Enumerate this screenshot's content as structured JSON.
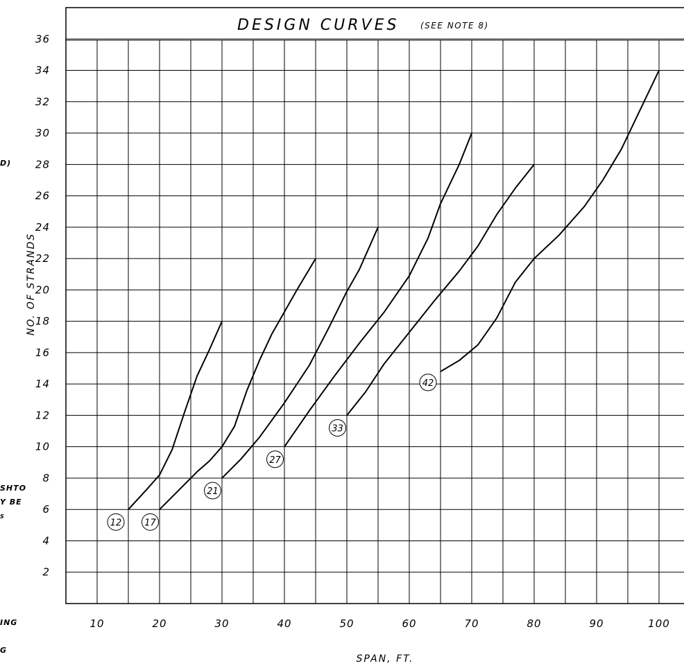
{
  "crop_fragments": {
    "line_a": "D)",
    "line_b": "SHTO",
    "line_c": "Y BE",
    "line_d": "S",
    "line_e": "ING",
    "line_f": "G"
  },
  "chart_data": {
    "type": "line",
    "title": "DESIGN CURVES",
    "subtitle": "(SEE NOTE 8)",
    "xlabel": "SPAN, FT.",
    "ylabel": "NO. OF STRANDS",
    "xlim": [
      5,
      105
    ],
    "ylim": [
      0,
      38
    ],
    "x_ticks": [
      10,
      20,
      30,
      40,
      50,
      60,
      70,
      80,
      90,
      100
    ],
    "x_tick_labels": [
      "10",
      "20",
      "30",
      "40",
      "50",
      "60",
      "70",
      "80",
      "90",
      "100"
    ],
    "y_ticks": [
      2,
      4,
      6,
      8,
      10,
      12,
      14,
      16,
      18,
      20,
      22,
      24,
      26,
      28,
      30,
      32,
      34,
      36
    ],
    "y_tick_labels": [
      "2",
      "4",
      "6",
      "8",
      "10",
      "12",
      "14",
      "16",
      "18",
      "20",
      "22",
      "24",
      "26",
      "28",
      "30",
      "32",
      "34",
      "36"
    ],
    "grid": true,
    "series": [
      {
        "name": "12",
        "label_pos": [
          13,
          5.2
        ],
        "points": [
          [
            15,
            6
          ],
          [
            18,
            7.3
          ],
          [
            20,
            8.2
          ],
          [
            22,
            9.8
          ],
          [
            24,
            12.2
          ],
          [
            26,
            14.5
          ],
          [
            28,
            16.2
          ],
          [
            30,
            18
          ]
        ]
      },
      {
        "name": "17",
        "label_pos": [
          18.5,
          5.2
        ],
        "points": [
          [
            20,
            6
          ],
          [
            23,
            7.2
          ],
          [
            26,
            8.4
          ],
          [
            28,
            9.1
          ],
          [
            30,
            10
          ],
          [
            32,
            11.3
          ],
          [
            34,
            13.6
          ],
          [
            36,
            15.5
          ],
          [
            38,
            17.2
          ],
          [
            40,
            18.6
          ],
          [
            42,
            20
          ],
          [
            45,
            22
          ]
        ]
      },
      {
        "name": "21",
        "label_pos": [
          28.5,
          7.2
        ],
        "points": [
          [
            30,
            8
          ],
          [
            33,
            9.2
          ],
          [
            36,
            10.6
          ],
          [
            40,
            12.8
          ],
          [
            44,
            15.2
          ],
          [
            47,
            17.5
          ],
          [
            50,
            19.9
          ],
          [
            52,
            21.3
          ],
          [
            55,
            24
          ]
        ]
      },
      {
        "name": "27",
        "label_pos": [
          38.5,
          9.2
        ],
        "points": [
          [
            40,
            10
          ],
          [
            44,
            12.3
          ],
          [
            48,
            14.5
          ],
          [
            52,
            16.6
          ],
          [
            56,
            18.6
          ],
          [
            60,
            20.9
          ],
          [
            63,
            23.3
          ],
          [
            65,
            25.5
          ],
          [
            68,
            28
          ],
          [
            70,
            30
          ]
        ]
      },
      {
        "name": "33",
        "label_pos": [
          48.5,
          11.2
        ],
        "points": [
          [
            50,
            12
          ],
          [
            53,
            13.5
          ],
          [
            56,
            15.3
          ],
          [
            60,
            17.3
          ],
          [
            64,
            19.3
          ],
          [
            68,
            21.2
          ],
          [
            71,
            22.8
          ],
          [
            74,
            24.8
          ],
          [
            77,
            26.5
          ],
          [
            80,
            28
          ]
        ]
      },
      {
        "name": "42",
        "label_pos": [
          63,
          14.1
        ],
        "points": [
          [
            65,
            14.8
          ],
          [
            68,
            15.5
          ],
          [
            71,
            16.5
          ],
          [
            74,
            18.2
          ],
          [
            77,
            20.5
          ],
          [
            80,
            22
          ],
          [
            84,
            23.5
          ],
          [
            88,
            25.3
          ],
          [
            91,
            27
          ],
          [
            94,
            29
          ],
          [
            97,
            31.5
          ],
          [
            100,
            34
          ]
        ]
      }
    ]
  }
}
